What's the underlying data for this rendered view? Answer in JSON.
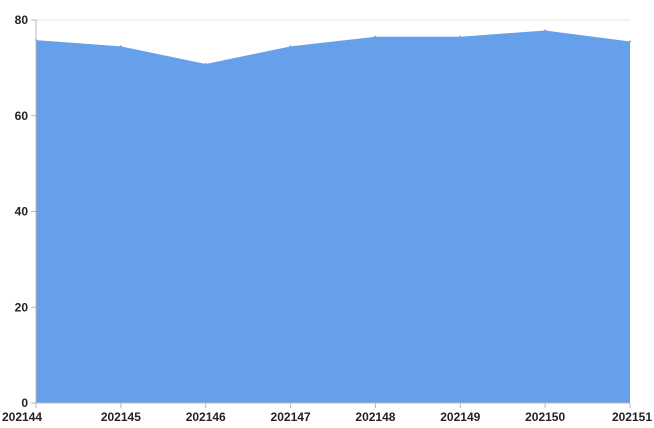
{
  "chart_data": {
    "type": "area",
    "x": [
      "202144",
      "202145",
      "202146",
      "202147",
      "202148",
      "202149",
      "202150",
      "202151"
    ],
    "series": [
      {
        "values": [
          75.8,
          74.5,
          70.8,
          74.5,
          76.5,
          76.5,
          77.8,
          75.5
        ]
      }
    ],
    "ylim": [
      0,
      80
    ],
    "yticks": [
      0,
      20,
      40,
      60,
      80
    ],
    "title": "",
    "xlabel": "",
    "ylabel": "",
    "grid": false,
    "colors": {
      "area": "#66a0ea",
      "axis": "#b8b8b8"
    }
  }
}
